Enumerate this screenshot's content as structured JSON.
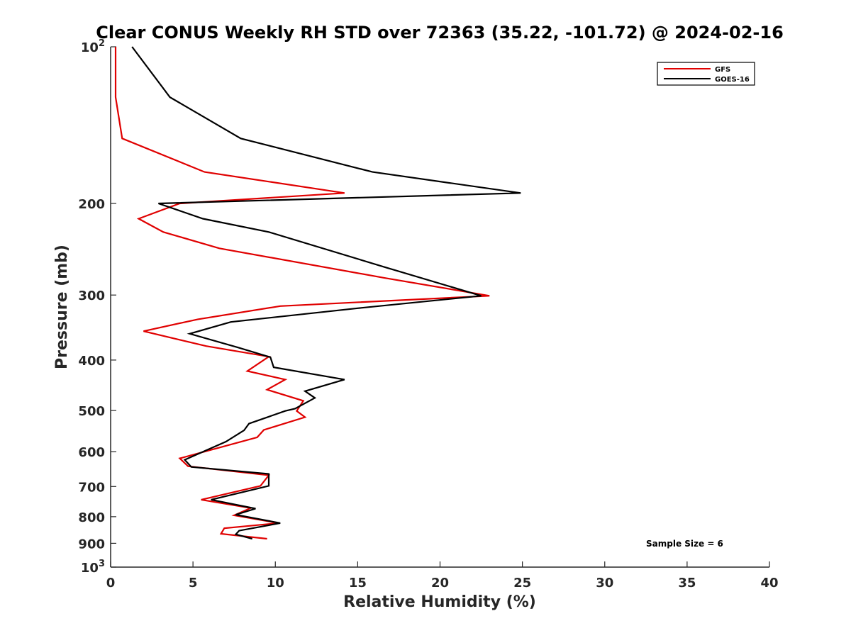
{
  "chart_data": {
    "type": "line",
    "title": "Clear CONUS Weekly RH STD over 72363 (35.22, -101.72) @ 2024-02-16",
    "xlabel": "Relative Humidity (%)",
    "ylabel": "Pressure (mb)",
    "xlim": [
      0,
      40
    ],
    "ylim": [
      100,
      1000
    ],
    "yscale": "log",
    "y_direction": "reverse",
    "x_ticks": [
      "0",
      "5",
      "10",
      "15",
      "20",
      "25",
      "30",
      "35",
      "40"
    ],
    "y_ticks": [
      {
        "value": 100,
        "base": "10",
        "exp": "2"
      },
      {
        "value": 200,
        "label": "200"
      },
      {
        "value": 300,
        "label": "300"
      },
      {
        "value": 400,
        "label": "400"
      },
      {
        "value": 500,
        "label": "500"
      },
      {
        "value": 600,
        "label": "600"
      },
      {
        "value": 700,
        "label": "700"
      },
      {
        "value": 800,
        "label": "800"
      },
      {
        "value": 900,
        "label": "900"
      },
      {
        "value": 1000,
        "base": "10",
        "exp": "3"
      }
    ],
    "legend_position": "top-right",
    "annotation": "Sample Size = 6",
    "series": [
      {
        "name": "GFS",
        "color": "#e00000",
        "points": [
          [
            0.3,
            100
          ],
          [
            0.3,
            125
          ],
          [
            0.7,
            150
          ],
          [
            5.7,
            174
          ],
          [
            14.2,
            191
          ],
          [
            4.2,
            200
          ],
          [
            1.7,
            214
          ],
          [
            3.2,
            227
          ],
          [
            6.6,
            244
          ],
          [
            16.6,
            278
          ],
          [
            23.0,
            301
          ],
          [
            10.3,
            315
          ],
          [
            5.3,
            334
          ],
          [
            2.0,
            352
          ],
          [
            5.8,
            376
          ],
          [
            9.6,
            394
          ],
          [
            8.3,
            420
          ],
          [
            10.6,
            436
          ],
          [
            9.5,
            456
          ],
          [
            11.7,
            479
          ],
          [
            11.3,
            501
          ],
          [
            11.8,
            515
          ],
          [
            9.3,
            545
          ],
          [
            8.9,
            563
          ],
          [
            4.2,
            618
          ],
          [
            4.7,
            640
          ],
          [
            9.6,
            666
          ],
          [
            9.1,
            698
          ],
          [
            5.5,
            742
          ],
          [
            8.5,
            770
          ],
          [
            7.5,
            795
          ],
          [
            10.2,
            823
          ],
          [
            6.9,
            842
          ],
          [
            6.7,
            863
          ],
          [
            9.5,
            882
          ]
        ]
      },
      {
        "name": "GOES-16",
        "color": "#000000",
        "points": [
          [
            1.3,
            100
          ],
          [
            3.6,
            125
          ],
          [
            7.9,
            150
          ],
          [
            15.9,
            174
          ],
          [
            24.9,
            191
          ],
          [
            2.9,
            200
          ],
          [
            5.6,
            214
          ],
          [
            9.6,
            227
          ],
          [
            16.8,
            266
          ],
          [
            22.5,
            301
          ],
          [
            15.0,
            318
          ],
          [
            7.3,
            338
          ],
          [
            4.8,
            356
          ],
          [
            7.7,
            378
          ],
          [
            9.7,
            395
          ],
          [
            9.9,
            413
          ],
          [
            14.2,
            436
          ],
          [
            11.8,
            459
          ],
          [
            12.4,
            473
          ],
          [
            11.2,
            496
          ],
          [
            10.6,
            501
          ],
          [
            8.4,
            530
          ],
          [
            8.1,
            546
          ],
          [
            7.0,
            574
          ],
          [
            4.5,
            622
          ],
          [
            4.9,
            642
          ],
          [
            9.6,
            662
          ],
          [
            9.6,
            698
          ],
          [
            6.1,
            742
          ],
          [
            8.8,
            772
          ],
          [
            7.6,
            793
          ],
          [
            10.3,
            823
          ],
          [
            7.8,
            851
          ],
          [
            7.6,
            865
          ],
          [
            8.6,
            882
          ]
        ]
      }
    ]
  }
}
